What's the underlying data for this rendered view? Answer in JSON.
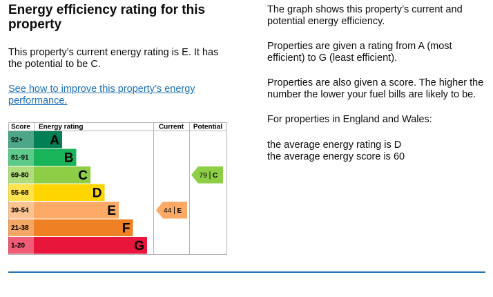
{
  "heading": "Energy efficiency rating for this property",
  "intro": "This property’s current energy rating is E. It has the potential to be C.",
  "link": "See how to improve this property’s energy performance.",
  "graph": {
    "headers": [
      "Score",
      "Energy rating",
      "Current",
      "Potential"
    ],
    "bands": [
      {
        "score": "92+",
        "letter": "A",
        "color": "#008054"
      },
      {
        "score": "81-91",
        "letter": "B",
        "color": "#19b459"
      },
      {
        "score": "69-80",
        "letter": "C",
        "color": "#8dce46"
      },
      {
        "score": "55-68",
        "letter": "D",
        "color": "#ffd500"
      },
      {
        "score": "39-54",
        "letter": "E",
        "color": "#fcaa65"
      },
      {
        "score": "21-38",
        "letter": "F",
        "color": "#ef8023"
      },
      {
        "score": "1-20",
        "letter": "G",
        "color": "#e9153b"
      }
    ],
    "current": {
      "score": 44,
      "letter": "E"
    },
    "potential": {
      "score": 79,
      "letter": "C"
    }
  },
  "aside": [
    "The graph shows this property’s current and potential energy efficiency.",
    "Properties are given a rating from A (most efficient) to G (least efficient).",
    "Properties are also given a score. The higher the number the lower your fuel bills are likely to be.",
    "For properties in England and Wales:"
  ],
  "averages": [
    "the average energy rating is D",
    "the average energy score is 60"
  ]
}
